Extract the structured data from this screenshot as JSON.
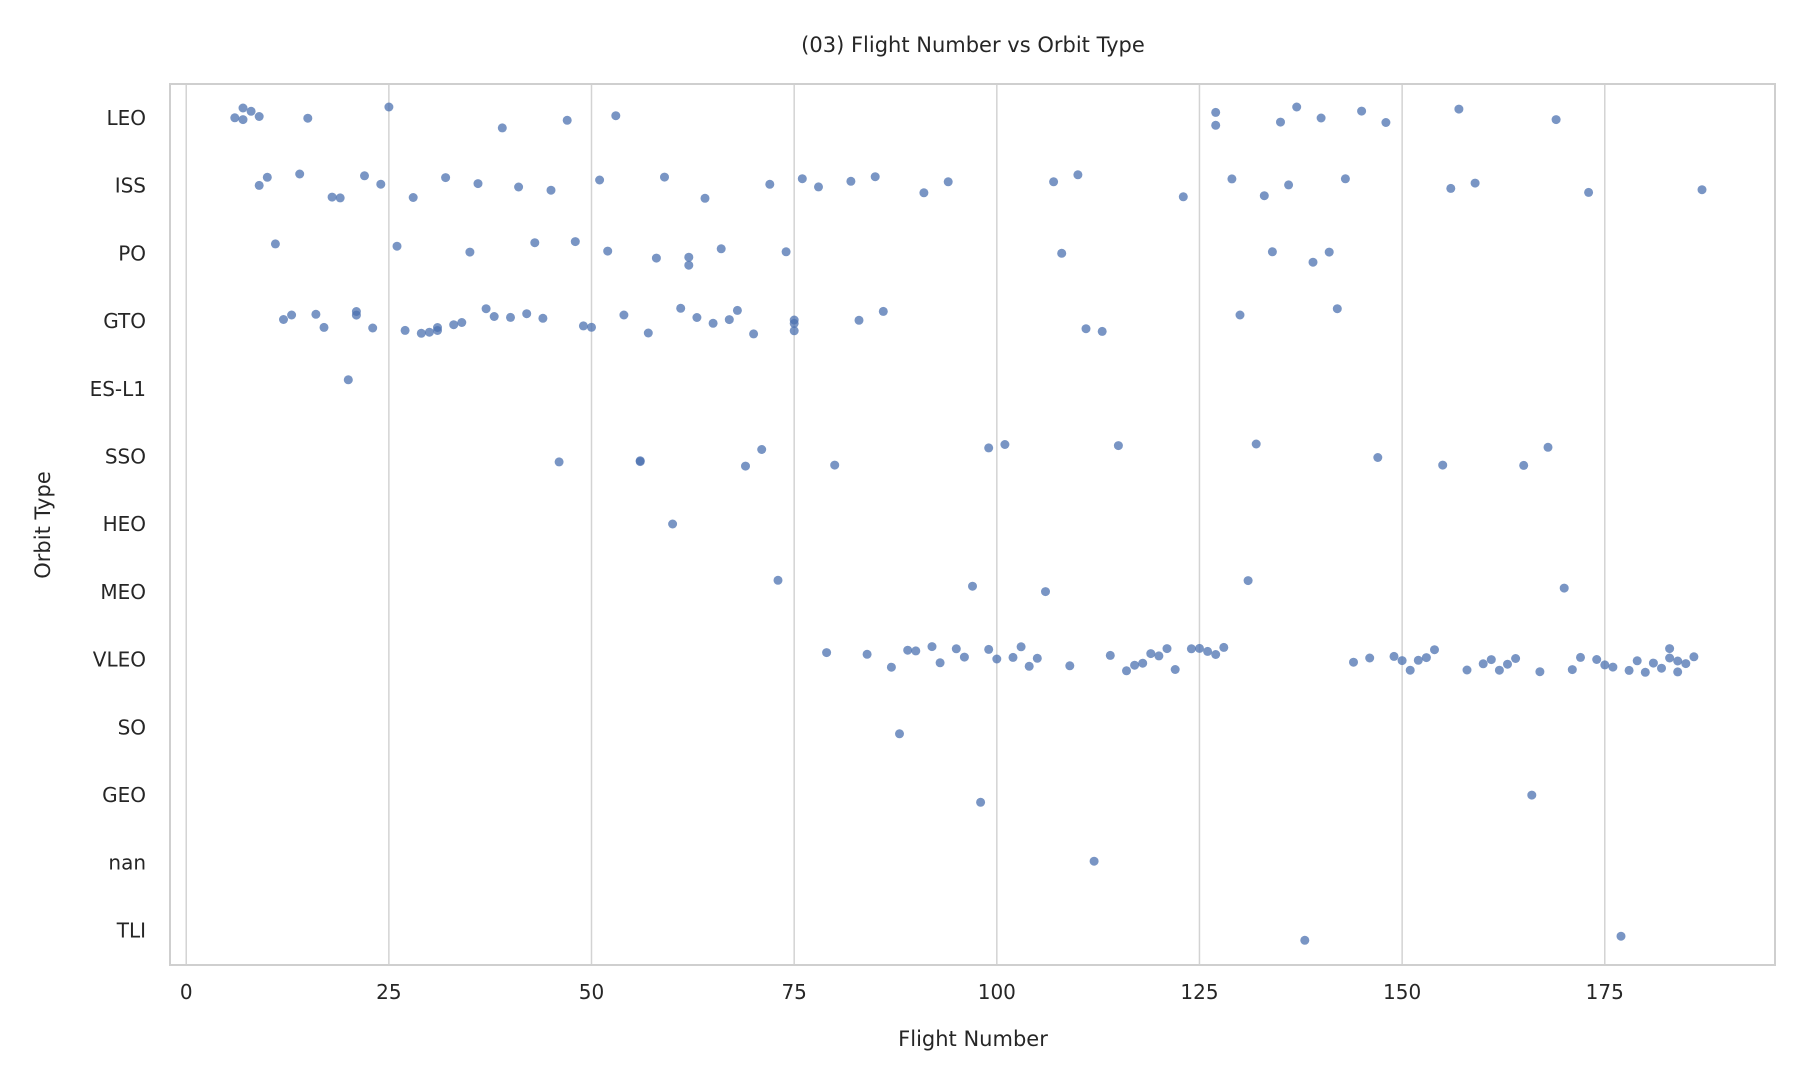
{
  "chart_data": {
    "type": "scatter",
    "title": "(03) Flight Number vs Orbit Type",
    "xlabel": "Flight Number",
    "ylabel": "Orbit Type",
    "xlim": [
      -2,
      196
    ],
    "xticks": [
      0,
      25,
      50,
      75,
      100,
      125,
      150,
      175
    ],
    "xtick_labels": [
      "0",
      "25",
      "50",
      "75",
      "100",
      "125",
      "150",
      "175"
    ],
    "categories": [
      "LEO",
      "ISS",
      "PO",
      "GTO",
      "ES-L1",
      "SSO",
      "HEO",
      "MEO",
      "VLEO",
      "SO",
      "GEO",
      "nan",
      "TLI"
    ],
    "grid": "x",
    "marker_color": "#4c72b0",
    "points": [
      {
        "x": 6,
        "y": "LEO"
      },
      {
        "x": 7,
        "y": "LEO"
      },
      {
        "x": 7,
        "y": "LEO"
      },
      {
        "x": 8,
        "y": "LEO"
      },
      {
        "x": 9,
        "y": "LEO"
      },
      {
        "x": 15,
        "y": "LEO"
      },
      {
        "x": 25,
        "y": "LEO"
      },
      {
        "x": 39,
        "y": "LEO"
      },
      {
        "x": 47,
        "y": "LEO"
      },
      {
        "x": 53,
        "y": "LEO"
      },
      {
        "x": 127,
        "y": "LEO"
      },
      {
        "x": 127,
        "y": "LEO"
      },
      {
        "x": 135,
        "y": "LEO"
      },
      {
        "x": 137,
        "y": "LEO"
      },
      {
        "x": 140,
        "y": "LEO"
      },
      {
        "x": 145,
        "y": "LEO"
      },
      {
        "x": 148,
        "y": "LEO"
      },
      {
        "x": 157,
        "y": "LEO"
      },
      {
        "x": 169,
        "y": "LEO"
      },
      {
        "x": 9,
        "y": "ISS"
      },
      {
        "x": 10,
        "y": "ISS"
      },
      {
        "x": 14,
        "y": "ISS"
      },
      {
        "x": 18,
        "y": "ISS"
      },
      {
        "x": 19,
        "y": "ISS"
      },
      {
        "x": 22,
        "y": "ISS"
      },
      {
        "x": 24,
        "y": "ISS"
      },
      {
        "x": 28,
        "y": "ISS"
      },
      {
        "x": 32,
        "y": "ISS"
      },
      {
        "x": 36,
        "y": "ISS"
      },
      {
        "x": 41,
        "y": "ISS"
      },
      {
        "x": 45,
        "y": "ISS"
      },
      {
        "x": 51,
        "y": "ISS"
      },
      {
        "x": 59,
        "y": "ISS"
      },
      {
        "x": 64,
        "y": "ISS"
      },
      {
        "x": 72,
        "y": "ISS"
      },
      {
        "x": 76,
        "y": "ISS"
      },
      {
        "x": 78,
        "y": "ISS"
      },
      {
        "x": 82,
        "y": "ISS"
      },
      {
        "x": 85,
        "y": "ISS"
      },
      {
        "x": 91,
        "y": "ISS"
      },
      {
        "x": 94,
        "y": "ISS"
      },
      {
        "x": 107,
        "y": "ISS"
      },
      {
        "x": 110,
        "y": "ISS"
      },
      {
        "x": 123,
        "y": "ISS"
      },
      {
        "x": 129,
        "y": "ISS"
      },
      {
        "x": 133,
        "y": "ISS"
      },
      {
        "x": 136,
        "y": "ISS"
      },
      {
        "x": 143,
        "y": "ISS"
      },
      {
        "x": 156,
        "y": "ISS"
      },
      {
        "x": 159,
        "y": "ISS"
      },
      {
        "x": 173,
        "y": "ISS"
      },
      {
        "x": 187,
        "y": "ISS"
      },
      {
        "x": 11,
        "y": "PO"
      },
      {
        "x": 26,
        "y": "PO"
      },
      {
        "x": 35,
        "y": "PO"
      },
      {
        "x": 43,
        "y": "PO"
      },
      {
        "x": 48,
        "y": "PO"
      },
      {
        "x": 52,
        "y": "PO"
      },
      {
        "x": 58,
        "y": "PO"
      },
      {
        "x": 62,
        "y": "PO"
      },
      {
        "x": 62,
        "y": "PO"
      },
      {
        "x": 66,
        "y": "PO"
      },
      {
        "x": 74,
        "y": "PO"
      },
      {
        "x": 108,
        "y": "PO"
      },
      {
        "x": 134,
        "y": "PO"
      },
      {
        "x": 139,
        "y": "PO"
      },
      {
        "x": 141,
        "y": "PO"
      },
      {
        "x": 12,
        "y": "GTO"
      },
      {
        "x": 13,
        "y": "GTO"
      },
      {
        "x": 16,
        "y": "GTO"
      },
      {
        "x": 17,
        "y": "GTO"
      },
      {
        "x": 21,
        "y": "GTO"
      },
      {
        "x": 21,
        "y": "GTO"
      },
      {
        "x": 23,
        "y": "GTO"
      },
      {
        "x": 27,
        "y": "GTO"
      },
      {
        "x": 29,
        "y": "GTO"
      },
      {
        "x": 30,
        "y": "GTO"
      },
      {
        "x": 31,
        "y": "GTO"
      },
      {
        "x": 31,
        "y": "GTO"
      },
      {
        "x": 33,
        "y": "GTO"
      },
      {
        "x": 34,
        "y": "GTO"
      },
      {
        "x": 37,
        "y": "GTO"
      },
      {
        "x": 38,
        "y": "GTO"
      },
      {
        "x": 40,
        "y": "GTO"
      },
      {
        "x": 42,
        "y": "GTO"
      },
      {
        "x": 44,
        "y": "GTO"
      },
      {
        "x": 49,
        "y": "GTO"
      },
      {
        "x": 50,
        "y": "GTO"
      },
      {
        "x": 54,
        "y": "GTO"
      },
      {
        "x": 57,
        "y": "GTO"
      },
      {
        "x": 61,
        "y": "GTO"
      },
      {
        "x": 63,
        "y": "GTO"
      },
      {
        "x": 65,
        "y": "GTO"
      },
      {
        "x": 67,
        "y": "GTO"
      },
      {
        "x": 68,
        "y": "GTO"
      },
      {
        "x": 70,
        "y": "GTO"
      },
      {
        "x": 75,
        "y": "GTO"
      },
      {
        "x": 75,
        "y": "GTO"
      },
      {
        "x": 75,
        "y": "GTO"
      },
      {
        "x": 83,
        "y": "GTO"
      },
      {
        "x": 86,
        "y": "GTO"
      },
      {
        "x": 111,
        "y": "GTO"
      },
      {
        "x": 113,
        "y": "GTO"
      },
      {
        "x": 130,
        "y": "GTO"
      },
      {
        "x": 142,
        "y": "GTO"
      },
      {
        "x": 20,
        "y": "ES-L1"
      },
      {
        "x": 46,
        "y": "SSO"
      },
      {
        "x": 56,
        "y": "SSO"
      },
      {
        "x": 56,
        "y": "SSO"
      },
      {
        "x": 69,
        "y": "SSO"
      },
      {
        "x": 71,
        "y": "SSO"
      },
      {
        "x": 80,
        "y": "SSO"
      },
      {
        "x": 99,
        "y": "SSO"
      },
      {
        "x": 101,
        "y": "SSO"
      },
      {
        "x": 115,
        "y": "SSO"
      },
      {
        "x": 132,
        "y": "SSO"
      },
      {
        "x": 147,
        "y": "SSO"
      },
      {
        "x": 155,
        "y": "SSO"
      },
      {
        "x": 165,
        "y": "SSO"
      },
      {
        "x": 168,
        "y": "SSO"
      },
      {
        "x": 60,
        "y": "HEO"
      },
      {
        "x": 73,
        "y": "MEO"
      },
      {
        "x": 97,
        "y": "MEO"
      },
      {
        "x": 106,
        "y": "MEO"
      },
      {
        "x": 131,
        "y": "MEO"
      },
      {
        "x": 170,
        "y": "MEO"
      },
      {
        "x": 79,
        "y": "VLEO"
      },
      {
        "x": 84,
        "y": "VLEO"
      },
      {
        "x": 87,
        "y": "VLEO"
      },
      {
        "x": 89,
        "y": "VLEO"
      },
      {
        "x": 90,
        "y": "VLEO"
      },
      {
        "x": 92,
        "y": "VLEO"
      },
      {
        "x": 93,
        "y": "VLEO"
      },
      {
        "x": 95,
        "y": "VLEO"
      },
      {
        "x": 96,
        "y": "VLEO"
      },
      {
        "x": 99,
        "y": "VLEO"
      },
      {
        "x": 100,
        "y": "VLEO"
      },
      {
        "x": 102,
        "y": "VLEO"
      },
      {
        "x": 103,
        "y": "VLEO"
      },
      {
        "x": 104,
        "y": "VLEO"
      },
      {
        "x": 105,
        "y": "VLEO"
      },
      {
        "x": 109,
        "y": "VLEO"
      },
      {
        "x": 114,
        "y": "VLEO"
      },
      {
        "x": 116,
        "y": "VLEO"
      },
      {
        "x": 117,
        "y": "VLEO"
      },
      {
        "x": 118,
        "y": "VLEO"
      },
      {
        "x": 119,
        "y": "VLEO"
      },
      {
        "x": 120,
        "y": "VLEO"
      },
      {
        "x": 121,
        "y": "VLEO"
      },
      {
        "x": 122,
        "y": "VLEO"
      },
      {
        "x": 124,
        "y": "VLEO"
      },
      {
        "x": 125,
        "y": "VLEO"
      },
      {
        "x": 126,
        "y": "VLEO"
      },
      {
        "x": 127,
        "y": "VLEO"
      },
      {
        "x": 128,
        "y": "VLEO"
      },
      {
        "x": 144,
        "y": "VLEO"
      },
      {
        "x": 146,
        "y": "VLEO"
      },
      {
        "x": 149,
        "y": "VLEO"
      },
      {
        "x": 150,
        "y": "VLEO"
      },
      {
        "x": 151,
        "y": "VLEO"
      },
      {
        "x": 152,
        "y": "VLEO"
      },
      {
        "x": 153,
        "y": "VLEO"
      },
      {
        "x": 154,
        "y": "VLEO"
      },
      {
        "x": 158,
        "y": "VLEO"
      },
      {
        "x": 160,
        "y": "VLEO"
      },
      {
        "x": 161,
        "y": "VLEO"
      },
      {
        "x": 162,
        "y": "VLEO"
      },
      {
        "x": 163,
        "y": "VLEO"
      },
      {
        "x": 164,
        "y": "VLEO"
      },
      {
        "x": 167,
        "y": "VLEO"
      },
      {
        "x": 171,
        "y": "VLEO"
      },
      {
        "x": 172,
        "y": "VLEO"
      },
      {
        "x": 174,
        "y": "VLEO"
      },
      {
        "x": 175,
        "y": "VLEO"
      },
      {
        "x": 176,
        "y": "VLEO"
      },
      {
        "x": 178,
        "y": "VLEO"
      },
      {
        "x": 179,
        "y": "VLEO"
      },
      {
        "x": 180,
        "y": "VLEO"
      },
      {
        "x": 181,
        "y": "VLEO"
      },
      {
        "x": 182,
        "y": "VLEO"
      },
      {
        "x": 183,
        "y": "VLEO"
      },
      {
        "x": 183,
        "y": "VLEO"
      },
      {
        "x": 184,
        "y": "VLEO"
      },
      {
        "x": 184,
        "y": "VLEO"
      },
      {
        "x": 185,
        "y": "VLEO"
      },
      {
        "x": 186,
        "y": "VLEO"
      },
      {
        "x": 88,
        "y": "SO"
      },
      {
        "x": 98,
        "y": "GEO"
      },
      {
        "x": 166,
        "y": "GEO"
      },
      {
        "x": 112,
        "y": "nan"
      },
      {
        "x": 138,
        "y": "TLI"
      },
      {
        "x": 177,
        "y": "TLI"
      }
    ]
  }
}
